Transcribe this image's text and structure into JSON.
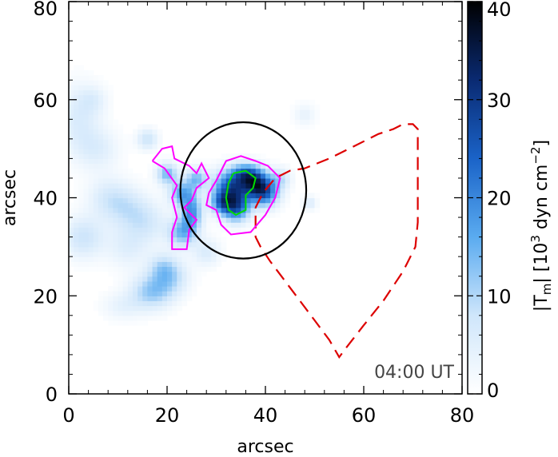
{
  "chart_data": {
    "type": "heatmap",
    "title": "",
    "xlabel": "arcsec",
    "ylabel": "arcsec",
    "xlim": [
      0,
      80
    ],
    "ylim": [
      0,
      80
    ],
    "x_ticks": [
      "0",
      "20",
      "40",
      "60",
      "80"
    ],
    "y_ticks": [
      "0",
      "20",
      "40",
      "60",
      "80"
    ],
    "x_tick_values": [
      0,
      20,
      40,
      60,
      80
    ],
    "y_tick_values": [
      0,
      20,
      40,
      60,
      80
    ],
    "annotation": "04:00 UT",
    "colorbar": {
      "label": "|T",
      "label_sub": "m",
      "label_after": "| [10",
      "label_sup": "3",
      "label_unit": " dyn cm",
      "label_unit_sup": "−2",
      "label_end": "]",
      "range": [
        0,
        40
      ],
      "ticks": [
        "0",
        "10",
        "20",
        "30",
        "40"
      ],
      "tick_values": [
        0,
        10,
        20,
        30,
        40
      ],
      "colormap": [
        "#ffffff",
        "#cfe6fb",
        "#5aabf0",
        "#1a63c8",
        "#0a2a72",
        "#000000"
      ]
    },
    "blobs": [
      {
        "x": 2,
        "y": 56,
        "sx": 3,
        "sy": 5,
        "v": 6
      },
      {
        "x": 6,
        "y": 50,
        "sx": 3,
        "sy": 3,
        "v": 5
      },
      {
        "x": 3,
        "y": 32,
        "sx": 3,
        "sy": 3,
        "v": 8
      },
      {
        "x": 8,
        "y": 40,
        "sx": 3,
        "sy": 3,
        "v": 6
      },
      {
        "x": 12,
        "y": 38,
        "sx": 3,
        "sy": 3,
        "v": 6
      },
      {
        "x": 12,
        "y": 30,
        "sx": 3,
        "sy": 3,
        "v": 5
      },
      {
        "x": 16,
        "y": 35,
        "sx": 3,
        "sy": 3,
        "v": 6
      },
      {
        "x": 17,
        "y": 21,
        "sx": 3,
        "sy": 2.5,
        "v": 12
      },
      {
        "x": 21,
        "y": 24,
        "sx": 2.5,
        "sy": 2.5,
        "v": 8
      },
      {
        "x": 19,
        "y": 26,
        "sx": 2,
        "sy": 2,
        "v": 7
      },
      {
        "x": 11,
        "y": 18,
        "sx": 3,
        "sy": 2,
        "v": 4
      },
      {
        "x": 20,
        "y": 45,
        "sx": 1.5,
        "sy": 1.5,
        "v": 14
      },
      {
        "x": 23,
        "y": 41,
        "sx": 1.8,
        "sy": 1.8,
        "v": 15
      },
      {
        "x": 25,
        "y": 37,
        "sx": 1.5,
        "sy": 2.5,
        "v": 18
      },
      {
        "x": 23,
        "y": 33,
        "sx": 2,
        "sy": 2,
        "v": 14
      },
      {
        "x": 26,
        "y": 44,
        "sx": 1.5,
        "sy": 1.5,
        "v": 13
      },
      {
        "x": 16,
        "y": 52,
        "sx": 1.5,
        "sy": 1.5,
        "v": 8
      },
      {
        "x": 33,
        "y": 42,
        "sx": 2.5,
        "sy": 2.5,
        "v": 26
      },
      {
        "x": 34,
        "y": 38,
        "sx": 2,
        "sy": 2,
        "v": 22
      },
      {
        "x": 38,
        "y": 43,
        "sx": 2,
        "sy": 2,
        "v": 24
      },
      {
        "x": 40,
        "y": 41,
        "sx": 2,
        "sy": 2,
        "v": 20
      },
      {
        "x": 36,
        "y": 45,
        "sx": 2,
        "sy": 1.5,
        "v": 16
      },
      {
        "x": 31,
        "y": 39,
        "sx": 1.5,
        "sy": 1.5,
        "v": 14
      },
      {
        "x": 43,
        "y": 44,
        "sx": 1.5,
        "sy": 1.5,
        "v": 8
      },
      {
        "x": 49,
        "y": 39,
        "sx": 1,
        "sy": 1,
        "v": 6
      },
      {
        "x": 48,
        "y": 57,
        "sx": 1.5,
        "sy": 1.5,
        "v": 4
      },
      {
        "x": 28,
        "y": 29,
        "sx": 2,
        "sy": 2,
        "v": 6
      },
      {
        "x": 5,
        "y": 60,
        "sx": 2,
        "sy": 2,
        "v": 4
      }
    ],
    "ellipse": {
      "cx": 35.5,
      "cy": 41.5,
      "rx": 12.8,
      "ry": 13.9,
      "color": "#000000"
    },
    "magenta_contour": {
      "color": "#ff00ff",
      "points": [
        [
          17,
          47.5
        ],
        [
          19,
          50
        ],
        [
          21,
          50.5
        ],
        [
          21.5,
          48
        ],
        [
          24.5,
          46.5
        ],
        [
          26,
          45
        ],
        [
          27,
          47
        ],
        [
          28.5,
          44
        ],
        [
          26,
          42
        ],
        [
          25,
          39.5
        ],
        [
          23.5,
          38
        ],
        [
          26,
          35.5
        ],
        [
          24.5,
          33.5
        ],
        [
          24,
          29.5
        ],
        [
          21,
          29.5
        ],
        [
          21,
          33
        ],
        [
          22,
          36
        ],
        [
          21,
          40
        ],
        [
          22,
          42.5
        ],
        [
          19.5,
          46
        ],
        [
          17,
          47.5
        ]
      ],
      "points2": [
        [
          28.5,
          41
        ],
        [
          30,
          43.5
        ],
        [
          32,
          47.5
        ],
        [
          35,
          48.5
        ],
        [
          38,
          47.5
        ],
        [
          40.5,
          46.5
        ],
        [
          43,
          44
        ],
        [
          42,
          40
        ],
        [
          40,
          36.5
        ],
        [
          37,
          33
        ],
        [
          33,
          32.5
        ],
        [
          31,
          34.5
        ],
        [
          30,
          37.5
        ],
        [
          28,
          38.5
        ],
        [
          28.5,
          41
        ]
      ]
    },
    "green_contour": {
      "color": "#00dd00",
      "points": [
        [
          33.5,
          45
        ],
        [
          36,
          45.5
        ],
        [
          38,
          44
        ],
        [
          37.5,
          42
        ],
        [
          36,
          40.5
        ],
        [
          36,
          37.5
        ],
        [
          34,
          36.5
        ],
        [
          32.5,
          37.5
        ],
        [
          32,
          40
        ],
        [
          32.5,
          43
        ],
        [
          33.5,
          45
        ]
      ]
    },
    "red_sector": {
      "color": "#dd0000",
      "points": [
        [
          38,
          38
        ],
        [
          39.5,
          41
        ],
        [
          42,
          44
        ],
        [
          45,
          45.5
        ],
        [
          48,
          46
        ],
        [
          53,
          48
        ],
        [
          58,
          50.5
        ],
        [
          63,
          53
        ],
        [
          66,
          54
        ],
        [
          68,
          55
        ],
        [
          70,
          55
        ],
        [
          71,
          54
        ],
        [
          71,
          44
        ],
        [
          71,
          35
        ],
        [
          70.5,
          30
        ],
        [
          68,
          25
        ],
        [
          64,
          19
        ],
        [
          60,
          14
        ],
        [
          56.5,
          9.5
        ],
        [
          55,
          7.5
        ],
        [
          53,
          11
        ],
        [
          50,
          15
        ],
        [
          47,
          19
        ],
        [
          44,
          23
        ],
        [
          41,
          27
        ],
        [
          39,
          30
        ],
        [
          38,
          32
        ],
        [
          38,
          35
        ],
        [
          38,
          38
        ]
      ]
    }
  }
}
